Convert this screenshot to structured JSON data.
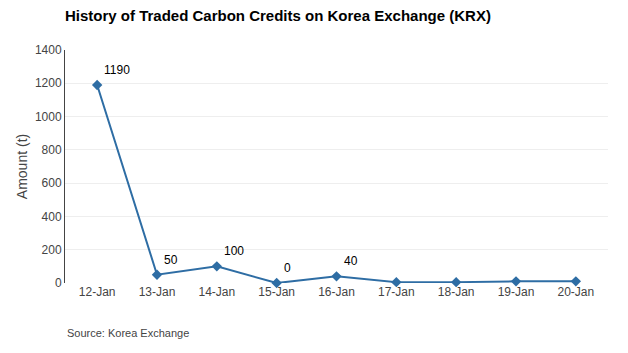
{
  "chart_data": {
    "type": "line",
    "title": "History of Traded Carbon Credits on Korea Exchange (KRX)",
    "ylabel": "Amount (t)",
    "source": "Source: Korea Exchange",
    "categories": [
      "12-Jan",
      "13-Jan",
      "14-Jan",
      "15-Jan",
      "16-Jan",
      "17-Jan",
      "18-Jan",
      "19-Jan",
      "20-Jan"
    ],
    "values": [
      1190,
      50,
      100,
      0,
      40,
      5,
      5,
      10,
      10
    ],
    "color": "#2e6da4",
    "marker": "diamond",
    "annotations": [
      {
        "category": "12-Jan",
        "value": 1190,
        "text": "1190"
      },
      {
        "category": "13-Jan",
        "value": 50,
        "text": "50"
      },
      {
        "category": "14-Jan",
        "value": 100,
        "text": "100"
      },
      {
        "category": "15-Jan",
        "value": 0,
        "text": "0"
      },
      {
        "category": "16-Jan",
        "value": 40,
        "text": "40"
      }
    ],
    "ylim": [
      0,
      1400
    ],
    "yticks": [
      0,
      200,
      400,
      600,
      800,
      1000,
      1200,
      1400
    ],
    "grid": true
  }
}
